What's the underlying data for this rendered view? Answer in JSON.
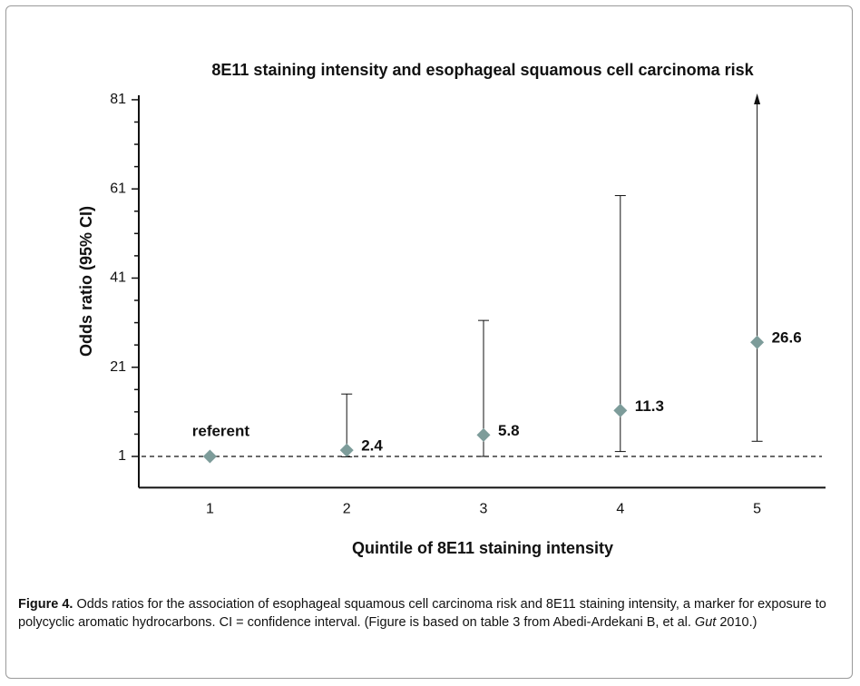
{
  "chart_data": {
    "type": "errorbar",
    "title": "8E11 staining intensity and esophageal squamous cell carcinoma risk",
    "x_label": "Quintile of 8E11 staining intensity",
    "y_label": "Odds ratio (95% CI)",
    "x": [
      1,
      2,
      3,
      4,
      5
    ],
    "values": [
      1,
      2.4,
      5.8,
      11.3,
      26.6
    ],
    "value_labels": [
      null,
      "2.4",
      "5.8",
      "11.3",
      "26.6"
    ],
    "lower": [
      null,
      0.9,
      1.0,
      2.1,
      4.4
    ],
    "upper": [
      null,
      15,
      31.5,
      59.5,
      null
    ],
    "color": "#7d9c9a",
    "annotations": [
      {
        "text": "referent"
      }
    ],
    "reference_line": 1,
    "xlim": [
      0.48,
      5.5
    ],
    "xticks": [
      1,
      2,
      3,
      4,
      5
    ],
    "ylim": [
      -6,
      82
    ],
    "yticks": [
      1,
      21,
      41,
      61,
      81
    ],
    "y_minor_ticks": [
      6,
      11,
      16,
      26,
      31,
      36,
      46,
      51,
      56,
      66,
      71,
      76
    ]
  },
  "caption": {
    "label": "Figure 4.",
    "text_before": " Odds ratios for the association of esophageal squamous cell carcinoma risk and 8E11 staining intensity, a marker for exposure to polycyclic aromatic hydrocarbons. CI = confidence interval. (Figure is based on table 3 from Abedi-Ardekani B, et al. ",
    "italic": "Gut",
    "text_after": " 2010.)"
  }
}
